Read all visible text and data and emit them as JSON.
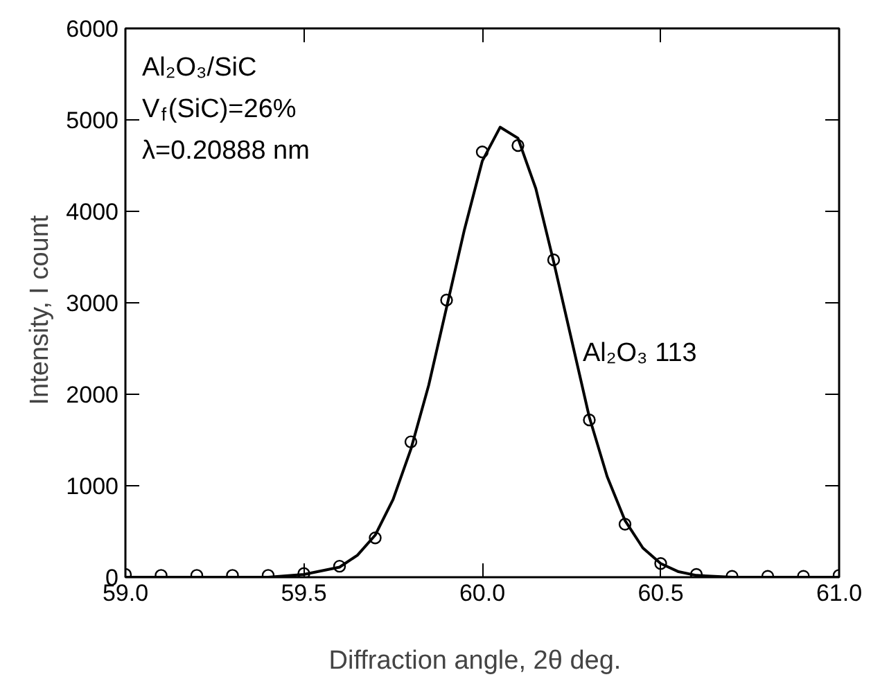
{
  "chart_data": {
    "type": "scatter",
    "xlabel": "Diffraction angle,  2θ  deg.",
    "ylabel": "Intensity,  I  count",
    "annotations": [
      "Al₂O₃/SiC",
      "V$_{f}$(SiC)=26%",
      "λ=0.20888 nm",
      "Al₂O₃ 113"
    ],
    "xlim": [
      59.0,
      61.0
    ],
    "ylim": [
      0,
      6000
    ],
    "xticks": [
      {
        "value": 59.0,
        "label": "59.0"
      },
      59.5,
      {
        "value": 60.0,
        "label": "60.0"
      },
      60.5,
      {
        "value": 61.0,
        "label": "61.0"
      }
    ],
    "yticks": [
      0,
      1000,
      2000,
      3000,
      4000,
      5000,
      6000
    ],
    "grid": false,
    "series": [
      {
        "color": "#000000",
        "marker": "circle",
        "x": [
          59.0,
          59.1,
          59.2,
          59.3,
          59.4,
          59.5,
          59.6,
          59.7,
          59.8,
          59.9,
          60.0,
          60.1,
          60.2,
          60.3,
          60.4,
          60.5,
          60.6,
          60.7,
          60.8,
          60.9,
          61.0
        ],
        "values": [
          30,
          20,
          20,
          20,
          20,
          40,
          120,
          430,
          1480,
          3030,
          4650,
          4720,
          3470,
          1720,
          580,
          150,
          30,
          10,
          10,
          10,
          20
        ]
      },
      {
        "type": "line",
        "color": "#000000",
        "line_style": "solid",
        "x": [
          59.0,
          59.4,
          59.5,
          59.6,
          59.65,
          59.7,
          59.75,
          59.8,
          59.85,
          59.9,
          59.95,
          60.0,
          60.05,
          60.1,
          60.15,
          60.2,
          60.25,
          60.3,
          60.35,
          60.4,
          60.45,
          60.5,
          60.55,
          60.6,
          60.7,
          61.0
        ],
        "values": [
          0,
          0,
          30,
          110,
          240,
          460,
          850,
          1400,
          2100,
          2950,
          3800,
          4550,
          4920,
          4800,
          4250,
          3450,
          2600,
          1750,
          1100,
          620,
          320,
          150,
          60,
          20,
          0,
          0
        ]
      }
    ]
  }
}
